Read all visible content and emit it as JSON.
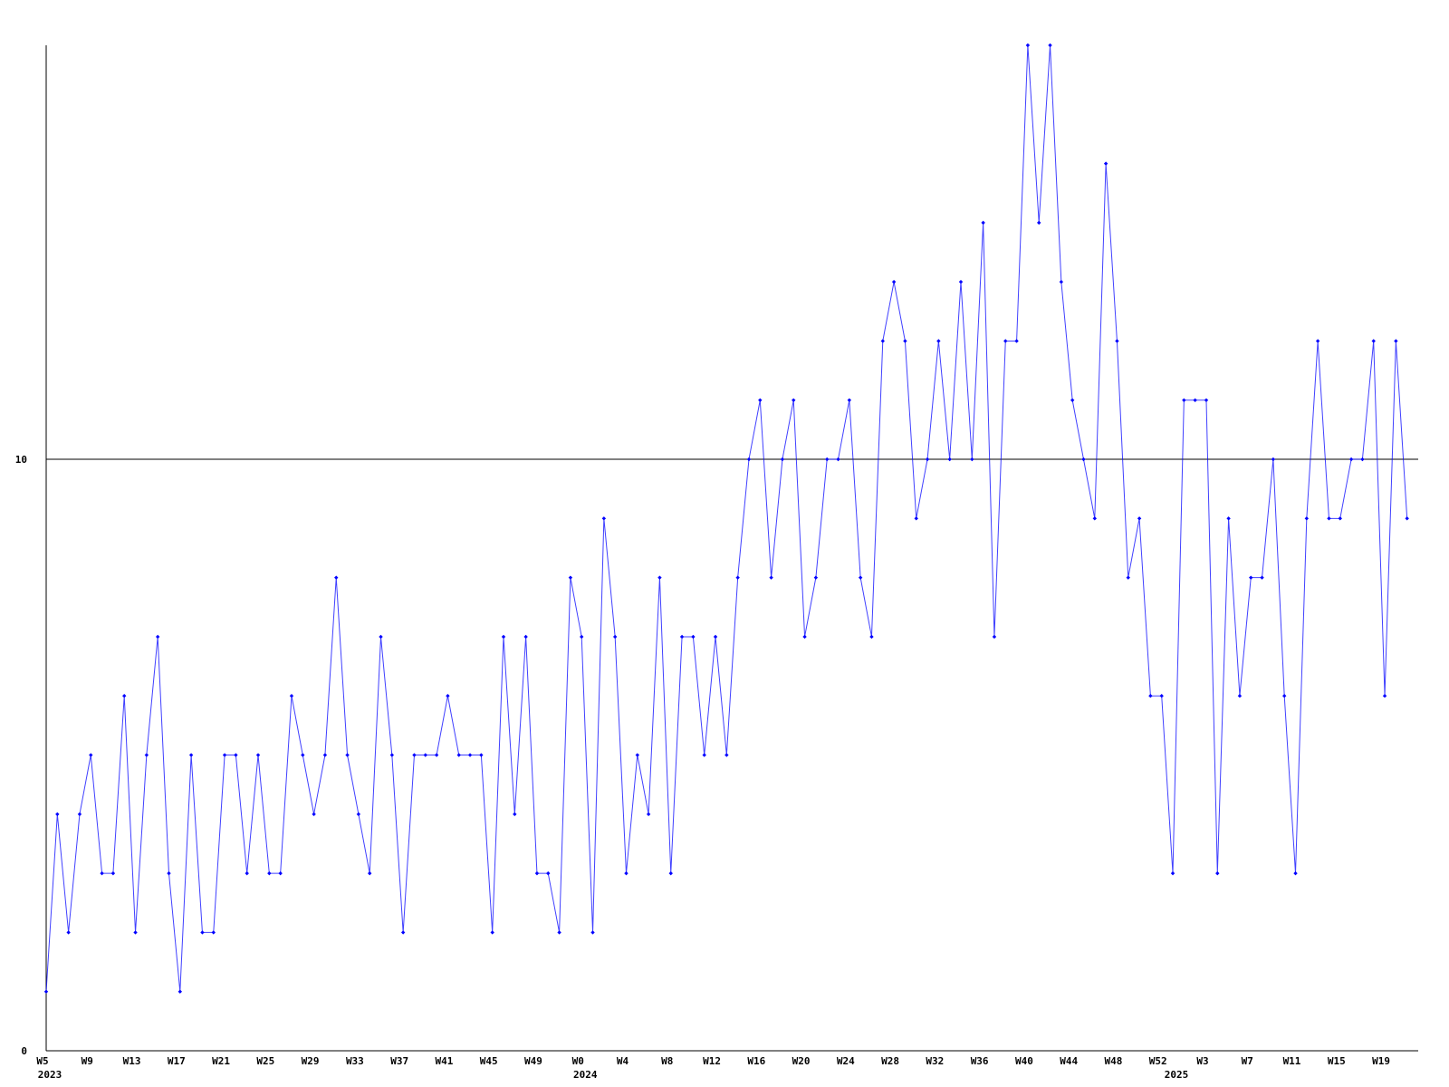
{
  "chart_data": {
    "type": "line",
    "categories": [
      "W5",
      null,
      null,
      null,
      "W9",
      null,
      null,
      null,
      "W13",
      null,
      null,
      null,
      "W17",
      null,
      null,
      null,
      "W21",
      null,
      null,
      null,
      "W25",
      null,
      null,
      null,
      "W29",
      null,
      null,
      null,
      "W33",
      null,
      null,
      null,
      "W37",
      null,
      null,
      null,
      "W41",
      null,
      null,
      null,
      "W45",
      null,
      null,
      null,
      "W49",
      null,
      null,
      null,
      "W0",
      null,
      null,
      null,
      "W4",
      null,
      null,
      null,
      "W8",
      null,
      null,
      null,
      "W12",
      null,
      null,
      null,
      "W16",
      null,
      null,
      null,
      "W20",
      null,
      null,
      null,
      "W24",
      null,
      null,
      null,
      "W28",
      null,
      null,
      null,
      "W32",
      null,
      null,
      null,
      "W36",
      null,
      null,
      null,
      "W40",
      null,
      null,
      null,
      "W44",
      null,
      null,
      null,
      "W48",
      null,
      null,
      null,
      "W52",
      null,
      null,
      null,
      "W3",
      null,
      null,
      null,
      "W7",
      null,
      null,
      null,
      "W11",
      null,
      null,
      null,
      "W15",
      null,
      null,
      null,
      "W19",
      null,
      null
    ],
    "years": [
      "2023",
      null,
      null,
      null,
      null,
      null,
      null,
      null,
      null,
      null,
      null,
      null,
      null,
      null,
      null,
      null,
      null,
      null,
      null,
      null,
      null,
      null,
      null,
      null,
      null,
      null,
      null,
      null,
      null,
      null,
      null,
      null,
      null,
      null,
      null,
      null,
      null,
      null,
      null,
      null,
      null,
      null,
      null,
      null,
      null,
      null,
      null,
      null,
      "2024",
      null,
      null,
      null,
      null,
      null,
      null,
      null,
      null,
      null,
      null,
      null,
      null,
      null,
      null,
      null,
      null,
      null,
      null,
      null,
      null,
      null,
      null,
      null,
      null,
      null,
      null,
      null,
      null,
      null,
      null,
      null,
      null,
      null,
      null,
      null,
      null,
      null,
      null,
      null,
      null,
      null,
      null,
      null,
      null,
      null,
      null,
      null,
      null,
      null,
      null,
      null,
      null,
      "2025",
      null,
      null,
      null,
      null,
      null,
      null,
      null,
      null,
      null,
      null,
      null,
      null,
      null,
      null,
      null,
      null,
      null,
      null,
      null,
      null,
      null
    ],
    "values": [
      1,
      4,
      2,
      4,
      5,
      3,
      3,
      6,
      2,
      5,
      7,
      3,
      1,
      5,
      2,
      2,
      5,
      5,
      3,
      5,
      3,
      3,
      6,
      5,
      4,
      5,
      8,
      5,
      4,
      3,
      7,
      5,
      2,
      5,
      5,
      5,
      6,
      5,
      5,
      5,
      2,
      7,
      4,
      7,
      3,
      3,
      2,
      8,
      7,
      2,
      9,
      7,
      3,
      5,
      4,
      8,
      3,
      7,
      7,
      5,
      7,
      5,
      8,
      10,
      11,
      8,
      10,
      11,
      7,
      8,
      10,
      10,
      11,
      8,
      7,
      12,
      13,
      12,
      9,
      10,
      12,
      10,
      13,
      10,
      14,
      7,
      12,
      12,
      17,
      14,
      17,
      13,
      11,
      10,
      9,
      15,
      12,
      8,
      9,
      6,
      6,
      3,
      11,
      11,
      11,
      3,
      9,
      6,
      8,
      8,
      10,
      6,
      3,
      9,
      12,
      9,
      9,
      10,
      10,
      12,
      6,
      12,
      9
    ],
    "color": "#0000ff",
    "ylim": [
      0,
      17
    ],
    "yticks": [
      0,
      10
    ],
    "grid": true
  }
}
